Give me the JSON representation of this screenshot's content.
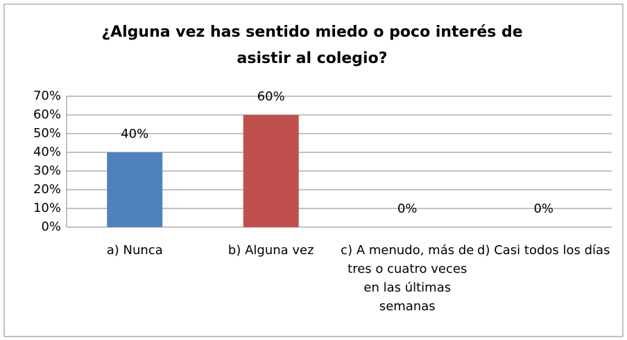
{
  "chart_data": {
    "type": "bar",
    "title": "¿Alguna vez has sentido miedo o poco interés de asistir al colegio?",
    "categories": [
      "a) Nunca",
      "b) Alguna vez",
      "c) A menudo, más de tres o cuatro veces en las últimas semanas",
      "d) Casi todos los días"
    ],
    "values": [
      40,
      60,
      0,
      0
    ],
    "value_labels": [
      "40%",
      "60%",
      "0%",
      "0%"
    ],
    "colors": [
      "#4f81bd",
      "#c0504d",
      "#9bbb59",
      "#8064a2"
    ],
    "ylim": [
      0,
      70
    ],
    "yticks": [
      {
        "value": 0,
        "label": "0%"
      },
      {
        "value": 10,
        "label": "10%"
      },
      {
        "value": 20,
        "label": "20%"
      },
      {
        "value": 30,
        "label": "30%"
      },
      {
        "value": 40,
        "label": "40%"
      },
      {
        "value": 50,
        "label": "50%"
      },
      {
        "value": 60,
        "label": "60%"
      },
      {
        "value": 70,
        "label": "70%"
      }
    ],
    "grid": true
  }
}
